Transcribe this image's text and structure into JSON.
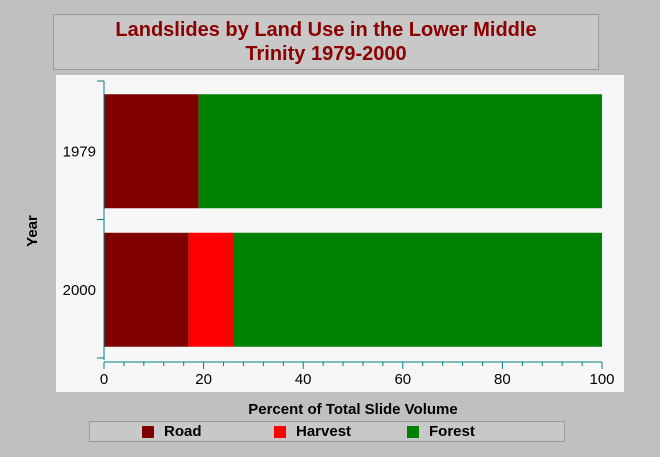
{
  "chart_data": {
    "type": "bar",
    "orientation": "horizontal",
    "stacked": true,
    "title": [
      "Landslides by Land Use in the Lower Middle",
      "Trinity 1979-2000"
    ],
    "xlabel": "Percent of Total Slide Volume",
    "ylabel": "Year",
    "xlim": [
      0,
      100
    ],
    "xticks": [
      "0",
      "20",
      "40",
      "60",
      "80",
      "100"
    ],
    "categories": [
      "1979",
      "2000"
    ],
    "series": [
      {
        "name": "Road",
        "color": "#800000",
        "values": [
          19,
          17
        ]
      },
      {
        "name": "Harvest",
        "color": "#ff0000",
        "values": [
          0,
          9
        ]
      },
      {
        "name": "Forest",
        "color": "#008000",
        "values": [
          81,
          74
        ]
      }
    ],
    "legend_position": "bottom",
    "grid": false
  }
}
